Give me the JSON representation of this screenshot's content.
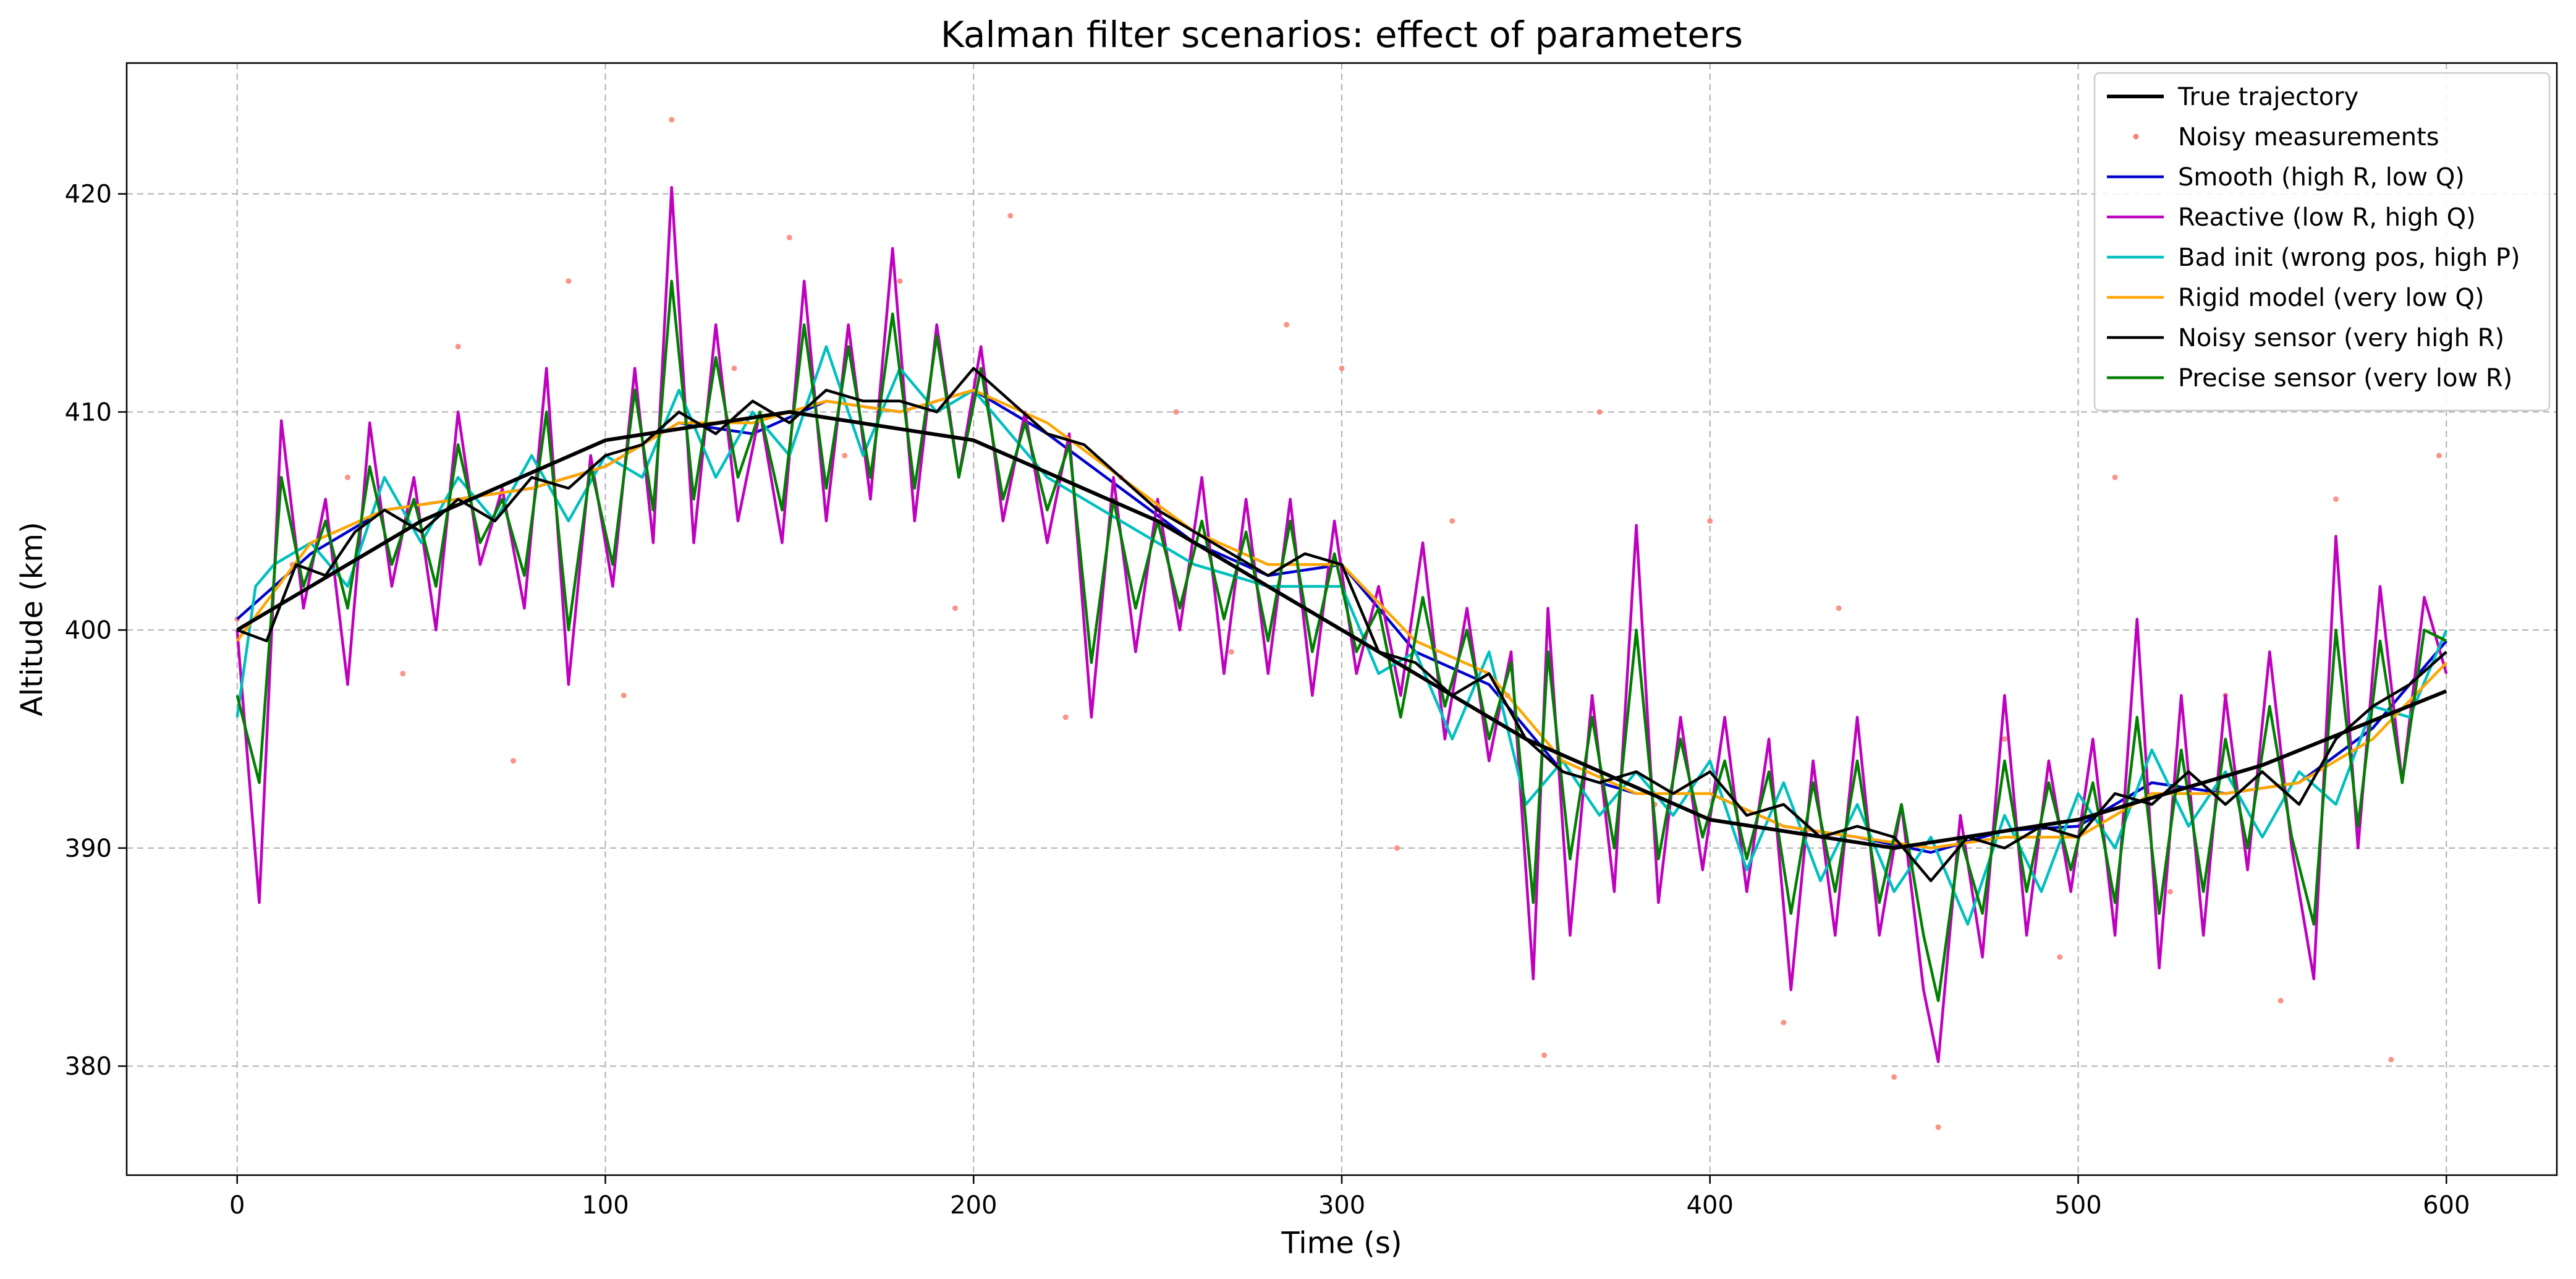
{
  "chart_data": {
    "type": "line",
    "title": "Kalman filter scenarios: effect of parameters",
    "xlabel": "Time (s)",
    "ylabel": "Altitude (km)",
    "xlim": [
      -30,
      630
    ],
    "ylim": [
      375,
      426
    ],
    "xticks": [
      0,
      100,
      200,
      300,
      400,
      500,
      600
    ],
    "yticks": [
      380,
      390,
      400,
      410,
      420
    ],
    "grid": true,
    "legend_position": "top-right",
    "series": [
      {
        "name": "True trajectory",
        "kind": "line",
        "color": "#000000",
        "width": "thick",
        "x": [
          0,
          50,
          100,
          150,
          200,
          250,
          300,
          350,
          400,
          450,
          500,
          550,
          600
        ],
        "y": [
          400,
          405,
          408.7,
          410,
          408.7,
          405,
          400,
          395,
          391.3,
          390,
          391.3,
          393.8,
          397.2
        ]
      },
      {
        "name": "Noisy measurements",
        "kind": "scatter",
        "color": "#fa8072",
        "x": [
          0,
          15,
          30,
          45,
          60,
          75,
          90,
          105,
          118,
          135,
          150,
          165,
          180,
          195,
          210,
          225,
          240,
          255,
          270,
          285,
          300,
          315,
          330,
          345,
          355,
          370,
          385,
          400,
          420,
          435,
          450,
          462,
          480,
          495,
          510,
          525,
          540,
          555,
          570,
          585,
          598
        ],
        "y": [
          400.5,
          403,
          407,
          398,
          413,
          394,
          416,
          397,
          423.4,
          412,
          418,
          408,
          416,
          401,
          419,
          396,
          407,
          410,
          399,
          414,
          412,
          390,
          405,
          397,
          380.5,
          410,
          392,
          405,
          382,
          401,
          379.5,
          377.2,
          395,
          385,
          407,
          388,
          397,
          383,
          406,
          380.3,
          408
        ]
      },
      {
        "name": "Smooth (high R, low Q)",
        "kind": "line",
        "color": "#0000cc",
        "x": [
          0,
          20,
          40,
          60,
          80,
          100,
          120,
          140,
          160,
          180,
          200,
          220,
          240,
          260,
          280,
          300,
          320,
          340,
          360,
          380,
          400,
          420,
          440,
          460,
          480,
          500,
          520,
          540,
          560,
          580,
          600
        ],
        "y": [
          400.5,
          403.5,
          405.5,
          406,
          406.5,
          407.5,
          409.5,
          409,
          410.5,
          410,
          411,
          409,
          406.5,
          404,
          402.5,
          403,
          399,
          397.5,
          393.5,
          392.5,
          392.5,
          391,
          390.5,
          389.8,
          390.8,
          391,
          393,
          392.5,
          393,
          395.5,
          399.5
        ]
      },
      {
        "name": "Reactive (low R, high Q)",
        "kind": "line",
        "color": "#bf00bf",
        "x": [
          0,
          6,
          12,
          18,
          24,
          30,
          36,
          42,
          48,
          54,
          60,
          66,
          72,
          78,
          84,
          90,
          96,
          102,
          108,
          113,
          118,
          124,
          130,
          136,
          142,
          148,
          154,
          160,
          166,
          172,
          178,
          184,
          190,
          196,
          202,
          208,
          214,
          220,
          226,
          232,
          238,
          244,
          250,
          256,
          262,
          268,
          274,
          280,
          286,
          292,
          298,
          304,
          310,
          316,
          322,
          328,
          334,
          340,
          346,
          352,
          356,
          362,
          368,
          374,
          380,
          386,
          392,
          398,
          404,
          410,
          416,
          422,
          428,
          434,
          440,
          446,
          452,
          458,
          462,
          468,
          474,
          480,
          486,
          492,
          498,
          504,
          510,
          516,
          522,
          528,
          534,
          540,
          546,
          552,
          558,
          564,
          570,
          576,
          582,
          588,
          594,
          600
        ],
        "y": [
          400,
          387.5,
          409.6,
          401,
          406,
          397.5,
          409.5,
          402,
          407,
          400,
          410,
          403,
          406.5,
          401,
          412,
          397.5,
          408,
          402,
          412,
          404,
          420.3,
          404,
          414,
          405,
          410,
          404,
          416,
          405,
          414,
          406,
          417.5,
          405,
          414,
          407,
          413,
          405,
          410,
          404,
          409,
          396,
          407,
          399,
          406,
          400,
          407,
          398,
          406,
          398,
          406,
          397,
          405,
          398,
          402,
          397,
          404,
          395,
          401,
          394,
          399,
          384,
          401,
          386,
          397,
          388,
          404.8,
          387.5,
          396,
          389,
          396,
          388,
          395,
          383.5,
          394,
          386,
          396,
          386,
          392,
          383.5,
          380.2,
          391.5,
          385,
          397,
          386,
          394,
          388,
          395,
          386,
          400.5,
          384.5,
          397,
          386,
          397,
          389,
          399,
          390,
          384,
          404.3,
          390,
          402,
          393,
          401.5,
          398
        ]
      },
      {
        "name": "Bad init (wrong pos, high P)",
        "kind": "line",
        "color": "#00bfbf",
        "x": [
          0,
          5,
          10,
          20,
          30,
          40,
          50,
          60,
          70,
          80,
          90,
          100,
          110,
          120,
          130,
          140,
          150,
          160,
          170,
          180,
          190,
          200,
          220,
          240,
          260,
          280,
          300,
          310,
          320,
          330,
          340,
          350,
          360,
          370,
          380,
          390,
          400,
          410,
          420,
          430,
          440,
          450,
          460,
          470,
          480,
          490,
          500,
          510,
          520,
          530,
          540,
          550,
          560,
          570,
          580,
          590,
          600
        ],
        "y": [
          396,
          402,
          403,
          404,
          402,
          407,
          404,
          407,
          405,
          408,
          405,
          408,
          407,
          411,
          407,
          410,
          408,
          413,
          408,
          412,
          410,
          411,
          407,
          405,
          403,
          402,
          402,
          398,
          399,
          395,
          399,
          392,
          394,
          391.5,
          393.5,
          391.5,
          394,
          389,
          393,
          388.5,
          392,
          388,
          390.5,
          386.5,
          391.5,
          388,
          392.5,
          390,
          394.5,
          391,
          393.5,
          390.5,
          393.5,
          392,
          396.5,
          396,
          400
        ]
      },
      {
        "name": "Rigid model (very low Q)",
        "kind": "line",
        "color": "#ffa500",
        "x": [
          0,
          20,
          40,
          60,
          80,
          100,
          120,
          140,
          160,
          180,
          200,
          220,
          240,
          260,
          280,
          300,
          320,
          340,
          360,
          380,
          400,
          420,
          440,
          460,
          480,
          500,
          520,
          540,
          560,
          580,
          600
        ],
        "y": [
          399.5,
          404,
          405.5,
          406,
          406.5,
          407.5,
          409.5,
          409.5,
          410.5,
          410,
          411,
          409.5,
          407,
          404.5,
          403,
          403,
          399.5,
          398,
          394,
          392.5,
          392.5,
          391,
          390.5,
          390,
          390.5,
          390.5,
          392.5,
          392.5,
          393,
          395,
          398.5
        ]
      },
      {
        "name": "Noisy sensor (very high R)",
        "kind": "line",
        "color": "#000000",
        "width": "normal",
        "x": [
          0,
          8,
          16,
          24,
          32,
          40,
          50,
          60,
          70,
          80,
          90,
          100,
          110,
          120,
          130,
          140,
          150,
          160,
          170,
          180,
          190,
          200,
          210,
          220,
          230,
          240,
          250,
          260,
          270,
          280,
          290,
          300,
          310,
          320,
          330,
          340,
          350,
          360,
          370,
          380,
          390,
          400,
          410,
          420,
          430,
          440,
          450,
          460,
          470,
          480,
          490,
          500,
          510,
          520,
          530,
          540,
          550,
          560,
          570,
          580,
          590,
          600
        ],
        "y": [
          400,
          399.5,
          403,
          402.5,
          404.5,
          405.5,
          404.5,
          406,
          405,
          407,
          406.5,
          408,
          408.5,
          410,
          409,
          410.5,
          409.5,
          411,
          410.5,
          410.5,
          410,
          412,
          410.5,
          409,
          408.5,
          407,
          405.5,
          404.5,
          403.5,
          402.5,
          403.5,
          403,
          399,
          398.5,
          397,
          398,
          395,
          393.5,
          393,
          393.5,
          392.5,
          393.5,
          391.5,
          392,
          390.5,
          391,
          390.5,
          388.5,
          390.5,
          390,
          391,
          390.5,
          392.5,
          392,
          393.5,
          392,
          393.5,
          392,
          395,
          396.5,
          397.5,
          399
        ]
      },
      {
        "name": "Precise sensor (very low R)",
        "kind": "line",
        "color": "#007f00",
        "x": [
          0,
          6,
          12,
          18,
          24,
          30,
          36,
          42,
          48,
          54,
          60,
          66,
          72,
          78,
          84,
          90,
          96,
          102,
          108,
          113,
          118,
          124,
          130,
          136,
          142,
          148,
          154,
          160,
          166,
          172,
          178,
          184,
          190,
          196,
          202,
          208,
          214,
          220,
          226,
          232,
          238,
          244,
          250,
          256,
          262,
          268,
          274,
          280,
          286,
          292,
          298,
          304,
          310,
          316,
          322,
          328,
          334,
          340,
          346,
          352,
          356,
          362,
          368,
          374,
          380,
          386,
          392,
          398,
          404,
          410,
          416,
          422,
          428,
          434,
          440,
          446,
          452,
          458,
          462,
          468,
          474,
          480,
          486,
          492,
          498,
          504,
          510,
          516,
          522,
          528,
          534,
          540,
          546,
          552,
          558,
          564,
          570,
          576,
          582,
          588,
          594,
          600
        ],
        "y": [
          397,
          393,
          407,
          402,
          405,
          401,
          407.5,
          403,
          406,
          402,
          408.5,
          404,
          406,
          402.5,
          410,
          400,
          407.5,
          403,
          411,
          405.5,
          416,
          406,
          412.5,
          407,
          410,
          405.5,
          414,
          406.5,
          413,
          407,
          414.5,
          406.5,
          413.5,
          407,
          412,
          406,
          409.5,
          405.5,
          408.5,
          398.5,
          406,
          401,
          405,
          401,
          405,
          400.5,
          404.5,
          399.5,
          405,
          399,
          403.5,
          399,
          401,
          396,
          401.5,
          396.5,
          400,
          395,
          398.5,
          387.5,
          399,
          389.5,
          396,
          390,
          400,
          389.5,
          395,
          390.5,
          394,
          389.5,
          393.5,
          387,
          393,
          388,
          394,
          387.5,
          392,
          386,
          383,
          390.5,
          387,
          394,
          388,
          393,
          389,
          393,
          387.5,
          396,
          387,
          394.5,
          388,
          395,
          390,
          396.5,
          390.5,
          386.5,
          400,
          391,
          399.5,
          393,
          400,
          399.5
        ]
      }
    ]
  }
}
